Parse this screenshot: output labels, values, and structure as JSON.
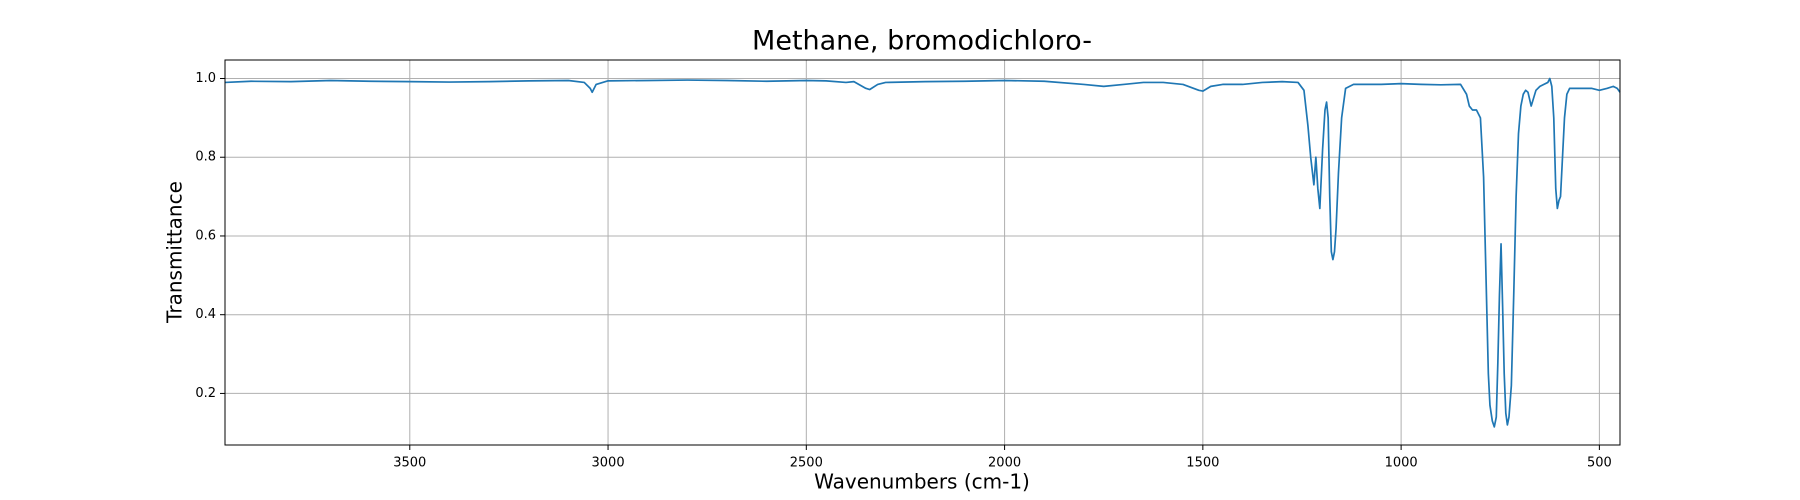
{
  "chart_data": {
    "type": "line",
    "title": "Methane, bromodichloro-",
    "xlabel": "Wavenumbers (cm-1)",
    "ylabel": "Transmittance",
    "color": "#1f77b4",
    "grid": true,
    "xlim": [
      3966,
      448
    ],
    "ylim": [
      0.069,
      1.047
    ],
    "xticks": [
      3500,
      3000,
      2500,
      2000,
      1500,
      1000,
      500
    ],
    "yticks": [
      0.2,
      0.4,
      0.6,
      0.8,
      {
        "value": 1,
        "label": "1.0"
      }
    ],
    "x": [
      3966,
      3900,
      3800,
      3700,
      3600,
      3500,
      3400,
      3300,
      3200,
      3100,
      3060,
      3045,
      3040,
      3030,
      3000,
      2900,
      2800,
      2700,
      2600,
      2500,
      2450,
      2400,
      2380,
      2350,
      2340,
      2320,
      2300,
      2200,
      2100,
      2000,
      1900,
      1800,
      1750,
      1700,
      1650,
      1600,
      1550,
      1510,
      1500,
      1480,
      1450,
      1400,
      1350,
      1300,
      1260,
      1245,
      1235,
      1228,
      1220,
      1215,
      1210,
      1205,
      1198,
      1192,
      1188,
      1184,
      1180,
      1176,
      1172,
      1168,
      1164,
      1158,
      1150,
      1140,
      1120,
      1100,
      1050,
      1000,
      950,
      900,
      850,
      835,
      828,
      820,
      810,
      800,
      792,
      786,
      780,
      776,
      770,
      765,
      760,
      756,
      752,
      748,
      744,
      740,
      736,
      732,
      728,
      722,
      716,
      710,
      704,
      698,
      692,
      686,
      680,
      672,
      666,
      660,
      650,
      640,
      630,
      625,
      620,
      615,
      610,
      606,
      602,
      598,
      594,
      588,
      582,
      575,
      560,
      540,
      520,
      500,
      480,
      465,
      455,
      448
    ],
    "values": [
      0.99,
      0.993,
      0.992,
      0.995,
      0.993,
      0.992,
      0.991,
      0.992,
      0.994,
      0.995,
      0.99,
      0.975,
      0.965,
      0.985,
      0.994,
      0.995,
      0.996,
      0.995,
      0.993,
      0.995,
      0.994,
      0.99,
      0.992,
      0.975,
      0.972,
      0.985,
      0.99,
      0.992,
      0.993,
      0.995,
      0.993,
      0.985,
      0.98,
      0.985,
      0.99,
      0.99,
      0.985,
      0.97,
      0.968,
      0.98,
      0.985,
      0.985,
      0.99,
      0.992,
      0.99,
      0.97,
      0.88,
      0.8,
      0.73,
      0.8,
      0.72,
      0.67,
      0.82,
      0.92,
      0.94,
      0.9,
      0.7,
      0.56,
      0.54,
      0.56,
      0.62,
      0.76,
      0.9,
      0.975,
      0.985,
      0.985,
      0.985,
      0.987,
      0.985,
      0.984,
      0.985,
      0.96,
      0.93,
      0.92,
      0.92,
      0.9,
      0.75,
      0.5,
      0.25,
      0.17,
      0.13,
      0.115,
      0.14,
      0.28,
      0.45,
      0.58,
      0.42,
      0.25,
      0.15,
      0.12,
      0.14,
      0.22,
      0.45,
      0.7,
      0.86,
      0.93,
      0.96,
      0.97,
      0.965,
      0.93,
      0.95,
      0.97,
      0.98,
      0.985,
      0.99,
      1.0,
      0.98,
      0.9,
      0.72,
      0.67,
      0.69,
      0.7,
      0.78,
      0.9,
      0.96,
      0.975,
      0.975,
      0.975,
      0.975,
      0.97,
      0.975,
      0.98,
      0.975,
      0.965
    ]
  }
}
